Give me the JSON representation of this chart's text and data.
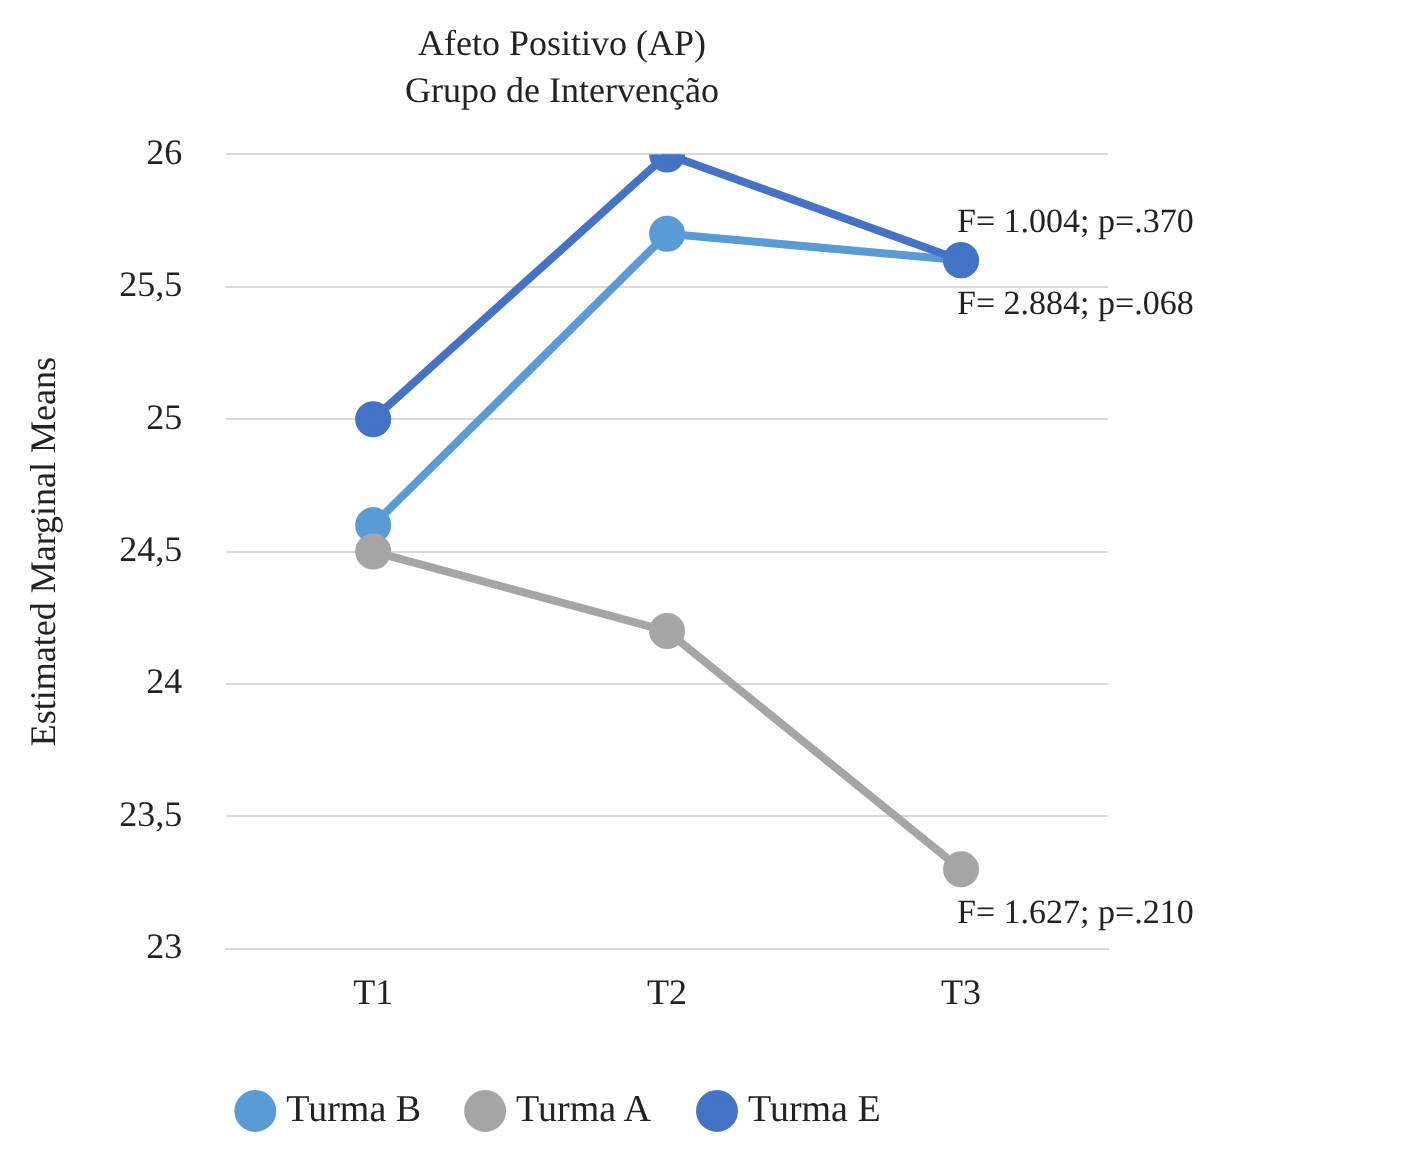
{
  "chart_data": {
    "type": "line",
    "title": "Afeto Positivo (AP)",
    "subtitle": "Grupo de Intervenção",
    "ylabel": "Estimated Marginal Means",
    "categories": [
      "T1",
      "T2",
      "T3"
    ],
    "series": [
      {
        "name": "Turma B",
        "color": "#5b9bd5",
        "values": [
          24.6,
          25.7,
          25.6
        ]
      },
      {
        "name": "Turma A",
        "color": "#a5a5a5",
        "values": [
          24.5,
          24.2,
          23.3
        ]
      },
      {
        "name": "Turma E",
        "color": "#4472c4",
        "values": [
          25,
          26,
          25.6
        ]
      }
    ],
    "ylim": [
      23,
      26
    ],
    "yticks": [
      23,
      {
        "value": 23.5,
        "label": "23,5"
      },
      24,
      {
        "value": 24.5,
        "label": "24,5"
      },
      25,
      {
        "value": 25.5,
        "label": "25,5"
      },
      26
    ],
    "grid": "y",
    "legend": "bottom",
    "marker": "circle",
    "line_style": "solid",
    "annotations": [
      {
        "text": "F= 1.004; p=.370",
        "x": "T3",
        "y": 25.6
      },
      {
        "text": "F= 2.884; p=.068",
        "x": "T3",
        "y": 25.6
      },
      {
        "text": "F= 1.627; p=.210",
        "x": "T3",
        "y": 23.3
      }
    ]
  }
}
